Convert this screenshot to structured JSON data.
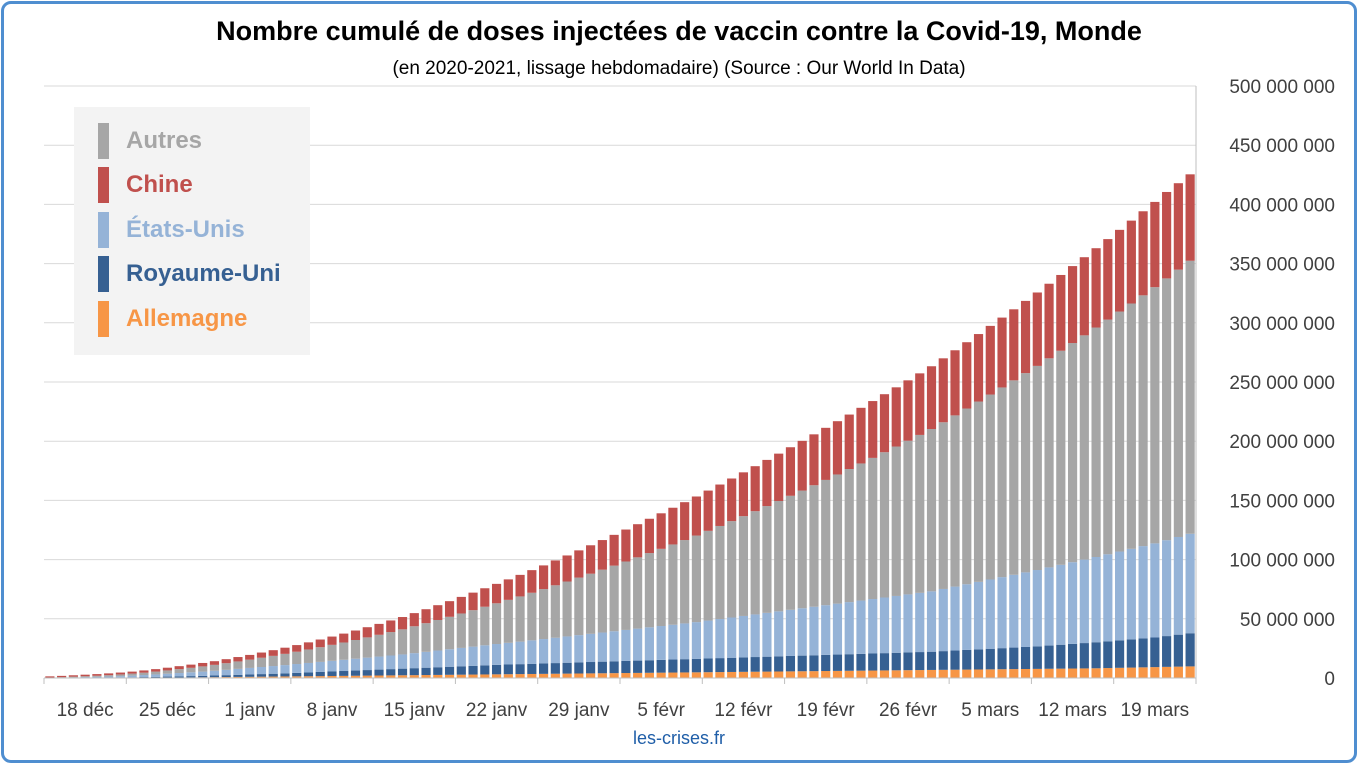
{
  "header": {
    "title": "Nombre cumulé de doses injectées de vaccin contre la Covid-19, Monde",
    "subtitle": "(en 2020-2021, lissage hebdomadaire) (Source : Our World In Data)"
  },
  "footer": {
    "credit": "les-crises.fr"
  },
  "legend": {
    "items": [
      {
        "label": "Autres",
        "color": "#a6a6a6"
      },
      {
        "label": "Chine",
        "color": "#c0504d"
      },
      {
        "label": "États-Unis",
        "color": "#95b3d7"
      },
      {
        "label": "Royaume-Uni",
        "color": "#366092"
      },
      {
        "label": "Allemagne",
        "color": "#f79646"
      }
    ]
  },
  "chart_data": {
    "type": "bar",
    "stacked": true,
    "title": "Nombre cumulé de doses injectées de vaccin contre la Covid-19, Monde",
    "subtitle": "(en 2020-2021, lissage hebdomadaire) (Source : Our World In Data)",
    "xlabel": "",
    "ylabel": "",
    "ylim": [
      0,
      500000000
    ],
    "y_ticks": [
      0,
      50000000,
      100000000,
      150000000,
      200000000,
      250000000,
      300000000,
      350000000,
      400000000,
      450000000,
      500000000
    ],
    "y_tick_labels": [
      "0",
      "50 000 000",
      "100 000 000",
      "150 000 000",
      "200 000 000",
      "250 000 000",
      "300 000 000",
      "350 000 000",
      "400 000 000",
      "450 000 000",
      "500 000 000"
    ],
    "y_axis_position": "right",
    "grid": true,
    "legend_position": "top-left",
    "x_tick_labels": [
      "18 déc",
      "25 déc",
      "1 janv",
      "8 janv",
      "15 janv",
      "22 janv",
      "29 janv",
      "5 févr",
      "12 févr",
      "19 févr",
      "26 févr",
      "5 mars",
      "12 mars",
      "19 mars"
    ],
    "x_tick_every": 7,
    "categories_count": 98,
    "stack_order": [
      "Allemagne",
      "Royaume-Uni",
      "États-Unis",
      "Autres",
      "Chine"
    ],
    "series": [
      {
        "name": "Allemagne",
        "color": "#f79646",
        "values": [
          0,
          0,
          0,
          0,
          0,
          0,
          0,
          0,
          100000,
          200000,
          300000,
          400000,
          500000,
          600000,
          700000,
          800000,
          900000,
          1000000,
          1100000,
          1200000,
          1300000,
          1400000,
          1500000,
          1600000,
          1700000,
          1800000,
          1900000,
          2000000,
          2100000,
          2200000,
          2300000,
          2400000,
          2500000,
          2600000,
          2700000,
          2800000,
          2900000,
          3000000,
          3100000,
          3200000,
          3300000,
          3400000,
          3500000,
          3600000,
          3700000,
          3800000,
          3900000,
          4000000,
          4100000,
          4200000,
          4300000,
          4400000,
          4500000,
          4600000,
          4700000,
          4800000,
          4900000,
          5000000,
          5100000,
          5200000,
          5300000,
          5400000,
          5500000,
          5600000,
          5700000,
          5800000,
          5900000,
          6000000,
          6100000,
          6200000,
          6300000,
          6400000,
          6500000,
          6600000,
          6700000,
          6800000,
          6900000,
          7000000,
          7100000,
          7200000,
          7300000,
          7400000,
          7500000,
          7600000,
          7700000,
          7800000,
          7900000,
          8000000,
          8100000,
          8200000,
          8400000,
          8600000,
          8800000,
          9000000,
          9200000,
          9400000,
          9600000,
          9800000
        ]
      },
      {
        "name": "Royaume-Uni",
        "color": "#366092",
        "values": [
          0,
          100000,
          200000,
          300000,
          300000,
          400000,
          500000,
          600000,
          700000,
          800000,
          900000,
          1000000,
          1100000,
          1200000,
          1400000,
          1600000,
          1800000,
          2000000,
          2200000,
          2400000,
          2600000,
          2900000,
          3200000,
          3500000,
          3800000,
          4100000,
          4400000,
          4700000,
          5000000,
          5300000,
          5600000,
          5900000,
          6200000,
          6500000,
          6800000,
          7100000,
          7400000,
          7700000,
          8000000,
          8200000,
          8400000,
          8600000,
          8800000,
          9000000,
          9200000,
          9400000,
          9600000,
          9800000,
          10000000,
          10200000,
          10400000,
          10600000,
          10800000,
          11000000,
          11200000,
          11400000,
          11600000,
          11800000,
          12000000,
          12200000,
          12400000,
          12600000,
          12800000,
          13000000,
          13200000,
          13400000,
          13600000,
          13800000,
          14000000,
          14200000,
          14400000,
          14600000,
          14800000,
          15000000,
          15200000,
          15400000,
          15800000,
          16200000,
          16600000,
          17000000,
          17400000,
          17800000,
          18200000,
          18600000,
          19000000,
          19600000,
          20200000,
          20800000,
          21400000,
          22000000,
          22600000,
          23200000,
          23800000,
          24400000,
          25000000,
          26000000,
          27000000,
          28000000
        ]
      },
      {
        "name": "États-Unis",
        "color": "#95b3d7",
        "values": [
          100000,
          200000,
          300000,
          500000,
          700000,
          900000,
          1100000,
          1400000,
          1700000,
          2000000,
          2400000,
          2800000,
          3200000,
          3600000,
          4000000,
          4500000,
          5000000,
          5500000,
          6000000,
          6500000,
          7000000,
          7500000,
          8000000,
          8500000,
          9000000,
          9500000,
          10000000,
          10500000,
          11000000,
          11500000,
          12000000,
          12700000,
          13400000,
          14100000,
          14800000,
          15500000,
          16200000,
          16900000,
          17600000,
          18300000,
          19000000,
          19800000,
          20600000,
          21400000,
          22200000,
          23000000,
          23800000,
          24600000,
          25400000,
          26200000,
          27000000,
          27800000,
          28600000,
          29400000,
          30200000,
          31000000,
          32000000,
          33000000,
          34000000,
          35000000,
          36000000,
          37000000,
          38000000,
          39000000,
          40000000,
          41000000,
          42000000,
          43000000,
          44000000,
          45000000,
          46000000,
          47000000,
          48000000,
          49000000,
          50000000,
          51000000,
          52500000,
          54000000,
          55500000,
          57000000,
          58500000,
          60000000,
          61500000,
          63000000,
          64500000,
          66000000,
          67500000,
          69000000,
          70500000,
          72000000,
          73500000,
          75000000,
          76500000,
          78000000,
          79500000,
          81000000,
          82500000,
          84000000
        ]
      },
      {
        "name": "Autres",
        "color": "#a6a6a6",
        "values": [
          300000,
          400000,
          600000,
          700000,
          900000,
          1100000,
          1400000,
          1700000,
          2000000,
          2400000,
          2800000,
          3300000,
          3800000,
          4400000,
          5000000,
          5600000,
          6300000,
          7000000,
          7800000,
          8600000,
          9500000,
          10400000,
          11400000,
          12400000,
          13500000,
          14600000,
          15800000,
          17100000,
          18400000,
          19800000,
          21200000,
          22700000,
          24200000,
          25800000,
          27400000,
          29100000,
          30800000,
          32600000,
          34400000,
          36300000,
          38200000,
          40200000,
          42200000,
          44300000,
          46400000,
          48600000,
          50800000,
          53100000,
          55400000,
          57800000,
          60200000,
          62700000,
          65200000,
          67800000,
          70400000,
          73100000,
          75800000,
          78600000,
          81400000,
          84300000,
          87200000,
          90200000,
          93200000,
          96300000,
          99400000,
          102600000,
          105800000,
          109100000,
          112400000,
          115800000,
          119200000,
          122700000,
          126200000,
          129800000,
          133400000,
          137100000,
          140800000,
          144600000,
          148400000,
          152300000,
          156200000,
          160200000,
          164200000,
          168300000,
          172400000,
          176600000,
          180800000,
          185100000,
          189400000,
          193800000,
          198200000,
          202700000,
          207200000,
          211800000,
          216400000,
          221100000,
          225800000,
          230600000
        ]
      },
      {
        "name": "Chine",
        "color": "#c0504d",
        "values": [
          1000000,
          1100000,
          1200000,
          1300000,
          1400000,
          1500000,
          1600000,
          1700000,
          1900000,
          2100000,
          2300000,
          2500000,
          2700000,
          2900000,
          3100000,
          3400000,
          3700000,
          4000000,
          4400000,
          4800000,
          5200000,
          5600000,
          6000000,
          6500000,
          7000000,
          7500000,
          8000000,
          8600000,
          9200000,
          9800000,
          10400000,
          11100000,
          11800000,
          12500000,
          13200000,
          14000000,
          14800000,
          15600000,
          16400000,
          17300000,
          18200000,
          19100000,
          20000000,
          21000000,
          22000000,
          23000000,
          24000000,
          25000000,
          26000000,
          27000000,
          28000000,
          29000000,
          30000000,
          31000000,
          32000000,
          33000000,
          34000000,
          35000000,
          36000000,
          37000000,
          38000000,
          39000000,
          40000000,
          41000000,
          42000000,
          43000000,
          44000000,
          45000000,
          46000000,
          47000000,
          48000000,
          49000000,
          50000000,
          51000000,
          52000000,
          53000000,
          54000000,
          55000000,
          56000000,
          57000000,
          58000000,
          59000000,
          60000000,
          61000000,
          62000000,
          63000000,
          64000000,
          65000000,
          66000000,
          67000000,
          68000000,
          69000000,
          70000000,
          71000000,
          72000000,
          73000000,
          73000000,
          73000000
        ]
      }
    ]
  }
}
